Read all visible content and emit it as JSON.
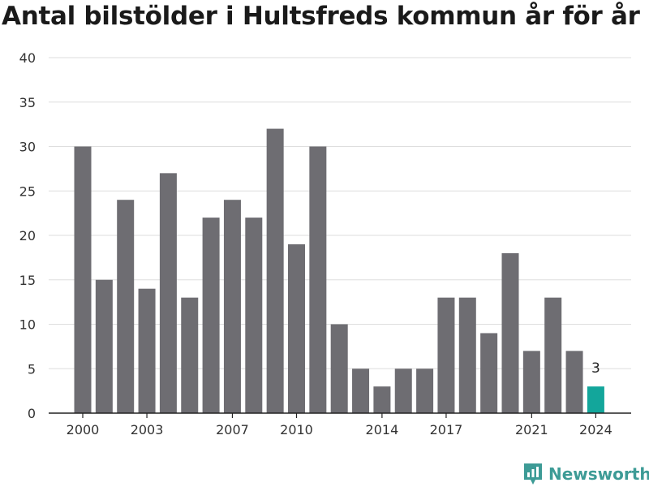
{
  "chart_data": {
    "type": "bar",
    "title": "Antal bilstölder i Hultsfreds kommun år för år",
    "xlabel": "",
    "ylabel": "",
    "x": [
      2000,
      2001,
      2002,
      2003,
      2004,
      2005,
      2006,
      2007,
      2008,
      2009,
      2010,
      2011,
      2012,
      2013,
      2014,
      2015,
      2016,
      2017,
      2018,
      2019,
      2020,
      2021,
      2022,
      2023,
      2024
    ],
    "values": [
      30,
      15,
      24,
      14,
      27,
      13,
      22,
      24,
      22,
      32,
      19,
      30,
      10,
      5,
      3,
      5,
      5,
      13,
      13,
      9,
      18,
      7,
      13,
      7,
      3
    ],
    "x_tick_labels": [
      2000,
      2003,
      2007,
      2010,
      2014,
      2017,
      2021,
      2024
    ],
    "y_ticks": [
      0,
      5,
      10,
      15,
      20,
      25,
      30,
      35,
      40
    ],
    "ylim": [
      0,
      40
    ],
    "grid": true,
    "bar_color": "#6e6d72",
    "highlight_color": "#13a69b",
    "highlight_x": 2024,
    "value_labels": [
      {
        "x": 2024,
        "text": "3"
      }
    ]
  },
  "brand": {
    "name": "Newsworthy",
    "color": "#3d9b96",
    "icon": "bar-chart-pin-icon"
  }
}
